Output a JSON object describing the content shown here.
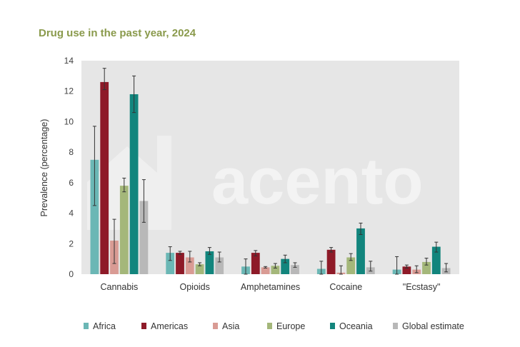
{
  "title": "Drug use in the past year, 2024",
  "watermark": "acento",
  "chart_data": {
    "type": "bar",
    "title": "Drug use in the past year, 2024",
    "xlabel": "",
    "ylabel": "Prevalence (percentage)",
    "ylim": [
      0,
      14
    ],
    "yticks": [
      0,
      2,
      4,
      6,
      8,
      10,
      12,
      14
    ],
    "grid": false,
    "legend_position": "bottom",
    "error_bars": true,
    "categories": [
      "Cannabis",
      "Opioids",
      "Amphetamines",
      "Cocaine",
      "\"Ecstasy\""
    ],
    "series": [
      {
        "name": "Africa",
        "color": "#6bb7b5",
        "values": [
          7.5,
          1.4,
          0.5,
          0.35,
          0.3
        ],
        "err_low": [
          4.5,
          0.9,
          0.0,
          0.0,
          0.0
        ],
        "err_high": [
          9.7,
          1.8,
          1.0,
          0.85,
          1.15
        ]
      },
      {
        "name": "Americas",
        "color": "#8e1a28",
        "values": [
          12.6,
          1.4,
          1.4,
          1.6,
          0.5
        ],
        "err_low": [
          12.1,
          1.3,
          1.2,
          1.45,
          0.4
        ],
        "err_high": [
          13.5,
          1.5,
          1.55,
          1.75,
          0.6
        ]
      },
      {
        "name": "Asia",
        "color": "#d99b94",
        "values": [
          2.2,
          1.1,
          0.45,
          0.1,
          0.3
        ],
        "err_low": [
          0.7,
          0.8,
          0.4,
          0.0,
          0.1
        ],
        "err_high": [
          3.6,
          1.5,
          0.5,
          0.55,
          0.55
        ]
      },
      {
        "name": "Europe",
        "color": "#a4b77a",
        "values": [
          5.8,
          0.65,
          0.55,
          1.1,
          0.8
        ],
        "err_low": [
          5.4,
          0.55,
          0.4,
          0.9,
          0.6
        ],
        "err_high": [
          6.3,
          0.75,
          0.7,
          1.35,
          1.05
        ]
      },
      {
        "name": "Oceania",
        "color": "#12857d",
        "values": [
          11.8,
          1.5,
          1.0,
          3.0,
          1.8
        ],
        "err_low": [
          10.6,
          1.3,
          0.75,
          2.6,
          1.45
        ],
        "err_high": [
          13.0,
          1.75,
          1.25,
          3.35,
          2.1
        ]
      },
      {
        "name": "Global estimate",
        "color": "#b8b8b8",
        "values": [
          4.8,
          1.1,
          0.6,
          0.45,
          0.4
        ],
        "err_low": [
          3.4,
          0.8,
          0.45,
          0.2,
          0.15
        ],
        "err_high": [
          6.2,
          1.45,
          0.75,
          0.85,
          0.7
        ]
      }
    ]
  }
}
